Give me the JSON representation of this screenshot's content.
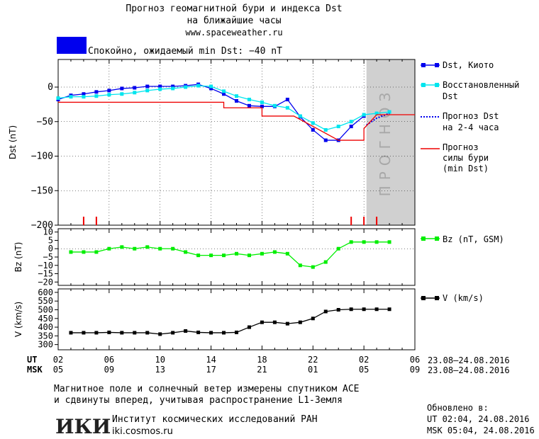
{
  "header": {
    "title_line1": "Прогноз геомагнитной бури и индекса Dst",
    "title_line2": "на ближайшие часы",
    "url": "www.spaceweather.ru",
    "status_text": "Спокойно, ожидаемый min Dst: −40 nT",
    "status_color": "#0000ee"
  },
  "footer": {
    "note_line1": "Магнитное поле и солнечный ветер измерены спутником ACE",
    "note_line2": "и сдвинуты вперед, учитывая распространение L1-Земля",
    "logo_text": "ИКИ",
    "institute": "Институт космических исследований РАН",
    "institute_url": "iki.cosmos.ru",
    "updated_label": "Обновлено в:",
    "updated_ut": "UT  02:04, 24.08.2016",
    "updated_msk": "MSK 05:04, 24.08.2016"
  },
  "chart_data": {
    "type": "line",
    "time_axis": {
      "ut_label": "UT",
      "msk_label": "MSK",
      "ut_ticks": [
        "02",
        "06",
        "10",
        "14",
        "18",
        "22",
        "02",
        "06"
      ],
      "msk_ticks": [
        "05",
        "09",
        "13",
        "17",
        "21",
        "01",
        "05",
        "09"
      ],
      "date_range": "23.08–24.08.2016",
      "range_hours": [
        0,
        28
      ]
    },
    "forecast_label": "ПРОГНОЗ",
    "forecast_region_hours": [
      24.2,
      28
    ],
    "panels": [
      {
        "id": "dst",
        "ylabel": "Dst (nT)",
        "ylim": [
          -200,
          40
        ],
        "yticks": [
          "0",
          "−50",
          "−100",
          "−150",
          "−200"
        ],
        "yticks_values": [
          0,
          -50,
          -100,
          -150,
          -200
        ],
        "series": [
          {
            "name": "Dst, Киото",
            "color": "#0000ee",
            "x": [
              0,
              1,
              2,
              3,
              4,
              5,
              6,
              7,
              8,
              9,
              10,
              11,
              12,
              13,
              14,
              15,
              16,
              17,
              18,
              19,
              20,
              21,
              22,
              23,
              24
            ],
            "y": [
              -18,
              -12,
              -10,
              -7,
              -5,
              -2,
              -1,
              1,
              1,
              1,
              2,
              4,
              -2,
              -10,
              -20,
              -27,
              -28,
              -28,
              -18,
              -43,
              -62,
              -77,
              -77,
              -57,
              -42
            ]
          },
          {
            "name": "Восстановленный Dst",
            "color": "#00e5ee",
            "x": [
              0,
              1,
              2,
              3,
              4,
              5,
              6,
              7,
              8,
              9,
              10,
              11,
              12,
              13,
              14,
              15,
              16,
              17,
              18,
              19,
              20,
              21,
              22,
              23,
              24,
              25,
              26
            ],
            "y": [
              -16,
              -14,
              -14,
              -13,
              -11,
              -10,
              -8,
              -5,
              -3,
              -2,
              0,
              2,
              1,
              -6,
              -13,
              -18,
              -22,
              -27,
              -30,
              -42,
              -52,
              -62,
              -57,
              -50,
              -40,
              -38,
              -36
            ]
          },
          {
            "name": "Прогноз Dst на 2–4 часа",
            "color": "#0000ee",
            "x": [
              24.2,
              25,
              26
            ],
            "y": [
              -55,
              -45,
              -38
            ]
          },
          {
            "name": "Прогноз силы бури (min Dst)",
            "color": "#ee0000",
            "x": [
              0,
              12,
              12,
              13,
              13,
              14,
              14,
              16,
              16,
              18,
              18,
              18.5,
              18.5,
              22,
              22,
              23,
              23,
              24,
              24,
              25,
              28
            ],
            "y": [
              -22,
              -22,
              -22,
              -22,
              -30,
              -30,
              -30,
              -30,
              -42,
              -42,
              -42,
              -42,
              -42,
              -77,
              -77,
              -77,
              -77,
              -77,
              -60,
              -40,
              -40
            ]
          }
        ],
        "markers_x": [
          2,
          3,
          23,
          24,
          25
        ]
      },
      {
        "id": "bz",
        "ylabel": "Bz (nT)",
        "ylim": [
          -22,
          12
        ],
        "yticks": [
          "10",
          "5",
          "0",
          "−5",
          "−10",
          "−15",
          "−20"
        ],
        "yticks_values": [
          10,
          5,
          0,
          -5,
          -10,
          -15,
          -20
        ],
        "series": [
          {
            "name": "Bz (nT, GSM)",
            "color": "#00ee00",
            "x": [
              1,
              2,
              3,
              4,
              5,
              6,
              7,
              8,
              9,
              10,
              11,
              12,
              13,
              14,
              15,
              16,
              17,
              18,
              19,
              20,
              21,
              22,
              23,
              24,
              25,
              26
            ],
            "y": [
              -2,
              -2,
              -2,
              0,
              1,
              0,
              1,
              0,
              0,
              -2,
              -4,
              -4,
              -4,
              -3,
              -4,
              -3,
              -2,
              -3,
              -10,
              -11,
              -8,
              0,
              4,
              4,
              4,
              4
            ]
          }
        ]
      },
      {
        "id": "v",
        "ylabel": "V (km/s)",
        "ylim": [
          270,
          620
        ],
        "yticks": [
          "600",
          "550",
          "500",
          "450",
          "400",
          "350",
          "300"
        ],
        "yticks_values": [
          600,
          550,
          500,
          450,
          400,
          350,
          300
        ],
        "series": [
          {
            "name": "V (km/s)",
            "color": "#000000",
            "x": [
              1,
              2,
              3,
              4,
              5,
              6,
              7,
              8,
              9,
              10,
              11,
              12,
              13,
              14,
              15,
              16,
              17,
              18,
              19,
              20,
              21,
              22,
              23,
              24,
              25,
              26
            ],
            "y": [
              368,
              368,
              368,
              370,
              368,
              368,
              368,
              360,
              368,
              378,
              370,
              368,
              368,
              370,
              400,
              428,
              428,
              420,
              428,
              450,
              490,
              500,
              503,
              503,
              503,
              503
            ]
          }
        ]
      }
    ]
  }
}
